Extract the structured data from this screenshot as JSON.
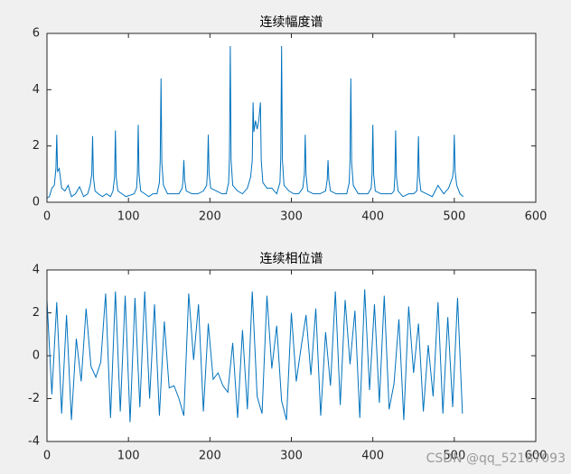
{
  "chart_data": [
    {
      "type": "line",
      "title": "连续幅度谱",
      "color": "#0072bd",
      "xlim": [
        0,
        600
      ],
      "xticks": [
        0,
        100,
        200,
        300,
        400,
        500,
        600
      ],
      "ylim": [
        0,
        6
      ],
      "yticks": [
        0,
        2,
        4,
        6
      ],
      "x": [
        0,
        3,
        6,
        9,
        11,
        12,
        13,
        15,
        18,
        22,
        26,
        30,
        35,
        40,
        45,
        50,
        53,
        55,
        56,
        57,
        59,
        63,
        68,
        73,
        78,
        81,
        83,
        84,
        85,
        87,
        92,
        97,
        102,
        107,
        110,
        111,
        112,
        113,
        115,
        120,
        125,
        130,
        135,
        138,
        139,
        140,
        141,
        143,
        148,
        155,
        162,
        166,
        167,
        168,
        169,
        171,
        178,
        185,
        192,
        196,
        197,
        198,
        199,
        201,
        208,
        215,
        220,
        223,
        224,
        225,
        226,
        228,
        234,
        240,
        246,
        250,
        252,
        253,
        254,
        256,
        258,
        260,
        262,
        263,
        265,
        270,
        276,
        282,
        286,
        287,
        288,
        289,
        291,
        297,
        303,
        309,
        314,
        316,
        317,
        318,
        320,
        327,
        335,
        342,
        344,
        345,
        346,
        348,
        355,
        362,
        368,
        371,
        372,
        373,
        374,
        376,
        382,
        388,
        394,
        398,
        399,
        400,
        401,
        403,
        410,
        416,
        423,
        426,
        427,
        428,
        429,
        431,
        437,
        444,
        450,
        454,
        455,
        456,
        457,
        459,
        466,
        473,
        480,
        487,
        493,
        498,
        499,
        500,
        501,
        503,
        507,
        511
      ],
      "values": [
        0.15,
        0.2,
        0.5,
        0.6,
        1.2,
        2.4,
        1.1,
        1.2,
        0.5,
        0.4,
        0.6,
        0.2,
        0.3,
        0.55,
        0.2,
        0.3,
        0.6,
        1.0,
        2.35,
        0.9,
        0.4,
        0.3,
        0.2,
        0.3,
        0.2,
        0.4,
        0.9,
        2.55,
        0.9,
        0.4,
        0.3,
        0.2,
        0.25,
        0.3,
        0.5,
        1.0,
        2.75,
        1.0,
        0.4,
        0.3,
        0.2,
        0.3,
        0.3,
        0.7,
        1.5,
        4.4,
        1.4,
        0.6,
        0.3,
        0.3,
        0.3,
        0.5,
        0.8,
        1.5,
        0.8,
        0.4,
        0.3,
        0.3,
        0.4,
        0.6,
        1.1,
        2.4,
        1.0,
        0.5,
        0.4,
        0.3,
        0.3,
        0.7,
        1.6,
        5.55,
        1.5,
        0.6,
        0.4,
        0.3,
        0.5,
        0.9,
        1.5,
        3.55,
        2.5,
        2.9,
        2.6,
        2.9,
        3.55,
        1.5,
        0.7,
        0.5,
        0.5,
        0.3,
        0.7,
        1.6,
        5.55,
        1.5,
        0.6,
        0.4,
        0.3,
        0.3,
        0.5,
        1.0,
        2.4,
        1.0,
        0.4,
        0.3,
        0.3,
        0.4,
        0.8,
        1.5,
        0.8,
        0.4,
        0.3,
        0.3,
        0.3,
        0.7,
        1.5,
        4.4,
        1.4,
        0.6,
        0.3,
        0.3,
        0.3,
        0.5,
        1.0,
        2.75,
        1.0,
        0.4,
        0.3,
        0.3,
        0.3,
        0.4,
        0.9,
        2.55,
        0.9,
        0.4,
        0.2,
        0.3,
        0.3,
        0.4,
        1.0,
        2.35,
        0.9,
        0.4,
        0.3,
        0.2,
        0.6,
        0.3,
        0.5,
        0.9,
        1.2,
        2.4,
        1.1,
        0.6,
        0.3,
        0.2
      ]
    },
    {
      "type": "line",
      "title": "连续相位谱",
      "color": "#0072bd",
      "xlim": [
        0,
        600
      ],
      "xticks": [
        0,
        100,
        200,
        300,
        400,
        500,
        600
      ],
      "ylim": [
        -4,
        4
      ],
      "yticks": [
        -4,
        -2,
        0,
        2,
        4
      ],
      "x": [
        0,
        6,
        12,
        18,
        24,
        30,
        36,
        42,
        48,
        54,
        60,
        66,
        72,
        78,
        84,
        90,
        96,
        102,
        108,
        114,
        120,
        126,
        132,
        138,
        144,
        150,
        156,
        162,
        168,
        174,
        180,
        186,
        192,
        198,
        204,
        210,
        216,
        222,
        228,
        234,
        240,
        246,
        252,
        258,
        264,
        270,
        276,
        282,
        288,
        294,
        300,
        306,
        312,
        318,
        324,
        330,
        336,
        342,
        348,
        354,
        360,
        366,
        372,
        378,
        384,
        390,
        396,
        402,
        408,
        414,
        420,
        426,
        432,
        438,
        444,
        450,
        456,
        462,
        468,
        474,
        480,
        486,
        492,
        498,
        504,
        510
      ],
      "values": [
        2.6,
        -1.8,
        2.5,
        -2.7,
        1.9,
        -3.0,
        0.8,
        -1.2,
        2.2,
        -0.5,
        -1.0,
        -0.3,
        2.9,
        -2.9,
        3.0,
        -2.6,
        2.8,
        -3.1,
        2.7,
        -2.4,
        3.0,
        -2.0,
        2.4,
        -2.8,
        1.6,
        -1.5,
        -1.4,
        -2.0,
        -2.8,
        2.9,
        -0.2,
        2.4,
        -2.6,
        1.5,
        -1.1,
        -0.8,
        -1.4,
        -1.7,
        0.6,
        -2.9,
        1.2,
        -2.5,
        3.0,
        -1.9,
        -2.7,
        2.8,
        -0.6,
        1.4,
        -2.1,
        -3.0,
        2.0,
        -1.2,
        0.4,
        1.9,
        -0.9,
        2.2,
        -2.8,
        1.1,
        -1.4,
        3.0,
        -2.3,
        2.6,
        -0.4,
        2.1,
        -2.9,
        3.1,
        -1.6,
        2.4,
        -2.2,
        2.8,
        -2.5,
        -1.3,
        1.7,
        -3.0,
        2.3,
        -0.8,
        1.5,
        -2.6,
        0.5,
        -1.9,
        2.5,
        -2.7,
        1.8,
        -2.4,
        2.7,
        -2.7
      ]
    }
  ],
  "watermark": "CSDN @qq_52187093"
}
